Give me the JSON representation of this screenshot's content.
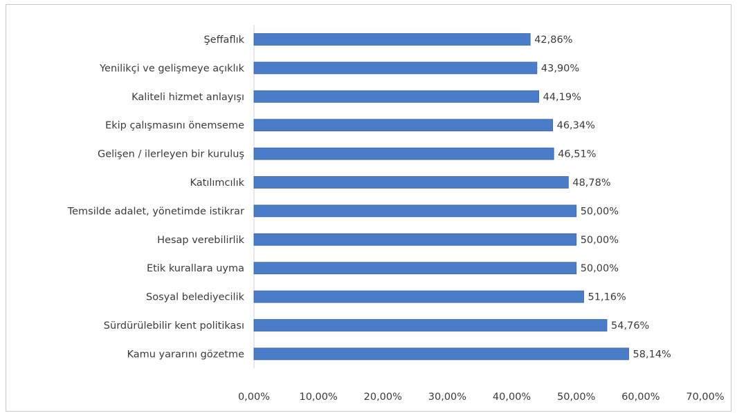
{
  "chart_data": {
    "type": "bar",
    "orientation": "horizontal",
    "categories": [
      "Şeffaflık",
      "Yenilikçi ve gelişmeye açıklık",
      "Kaliteli hizmet anlayışı",
      "Ekip çalışmasını önemseme",
      "Gelişen / ilerleyen bir kuruluş",
      "Katılımcılık",
      "Temsilde adalet, yönetimde istikrar",
      "Hesap verebilirlik",
      "Etik kurallara uyma",
      "Sosyal belediyecilik",
      "Sürdürülebilir kent politikası",
      "Kamu yararını gözetme"
    ],
    "values": [
      42.86,
      43.9,
      44.19,
      46.34,
      46.51,
      48.78,
      50.0,
      50.0,
      50.0,
      51.16,
      54.76,
      58.14
    ],
    "value_labels": [
      "42,86%",
      "43,90%",
      "44,19%",
      "46,34%",
      "46,51%",
      "48,78%",
      "50,00%",
      "50,00%",
      "50,00%",
      "51,16%",
      "54,76%",
      "58,14%"
    ],
    "xlim": [
      0,
      70
    ],
    "x_ticks": [
      0,
      10,
      20,
      30,
      40,
      50,
      60,
      70
    ],
    "x_tick_labels": [
      "0,00%",
      "10,00%",
      "20,00%",
      "30,00%",
      "40,00%",
      "50,00%",
      "60,00%",
      "70,00%"
    ],
    "title": "",
    "xlabel": "",
    "ylabel": "",
    "grid": false,
    "legend": "none",
    "bar_color": "#4a7cc7",
    "bar_edge_color": "#3a66a8"
  }
}
